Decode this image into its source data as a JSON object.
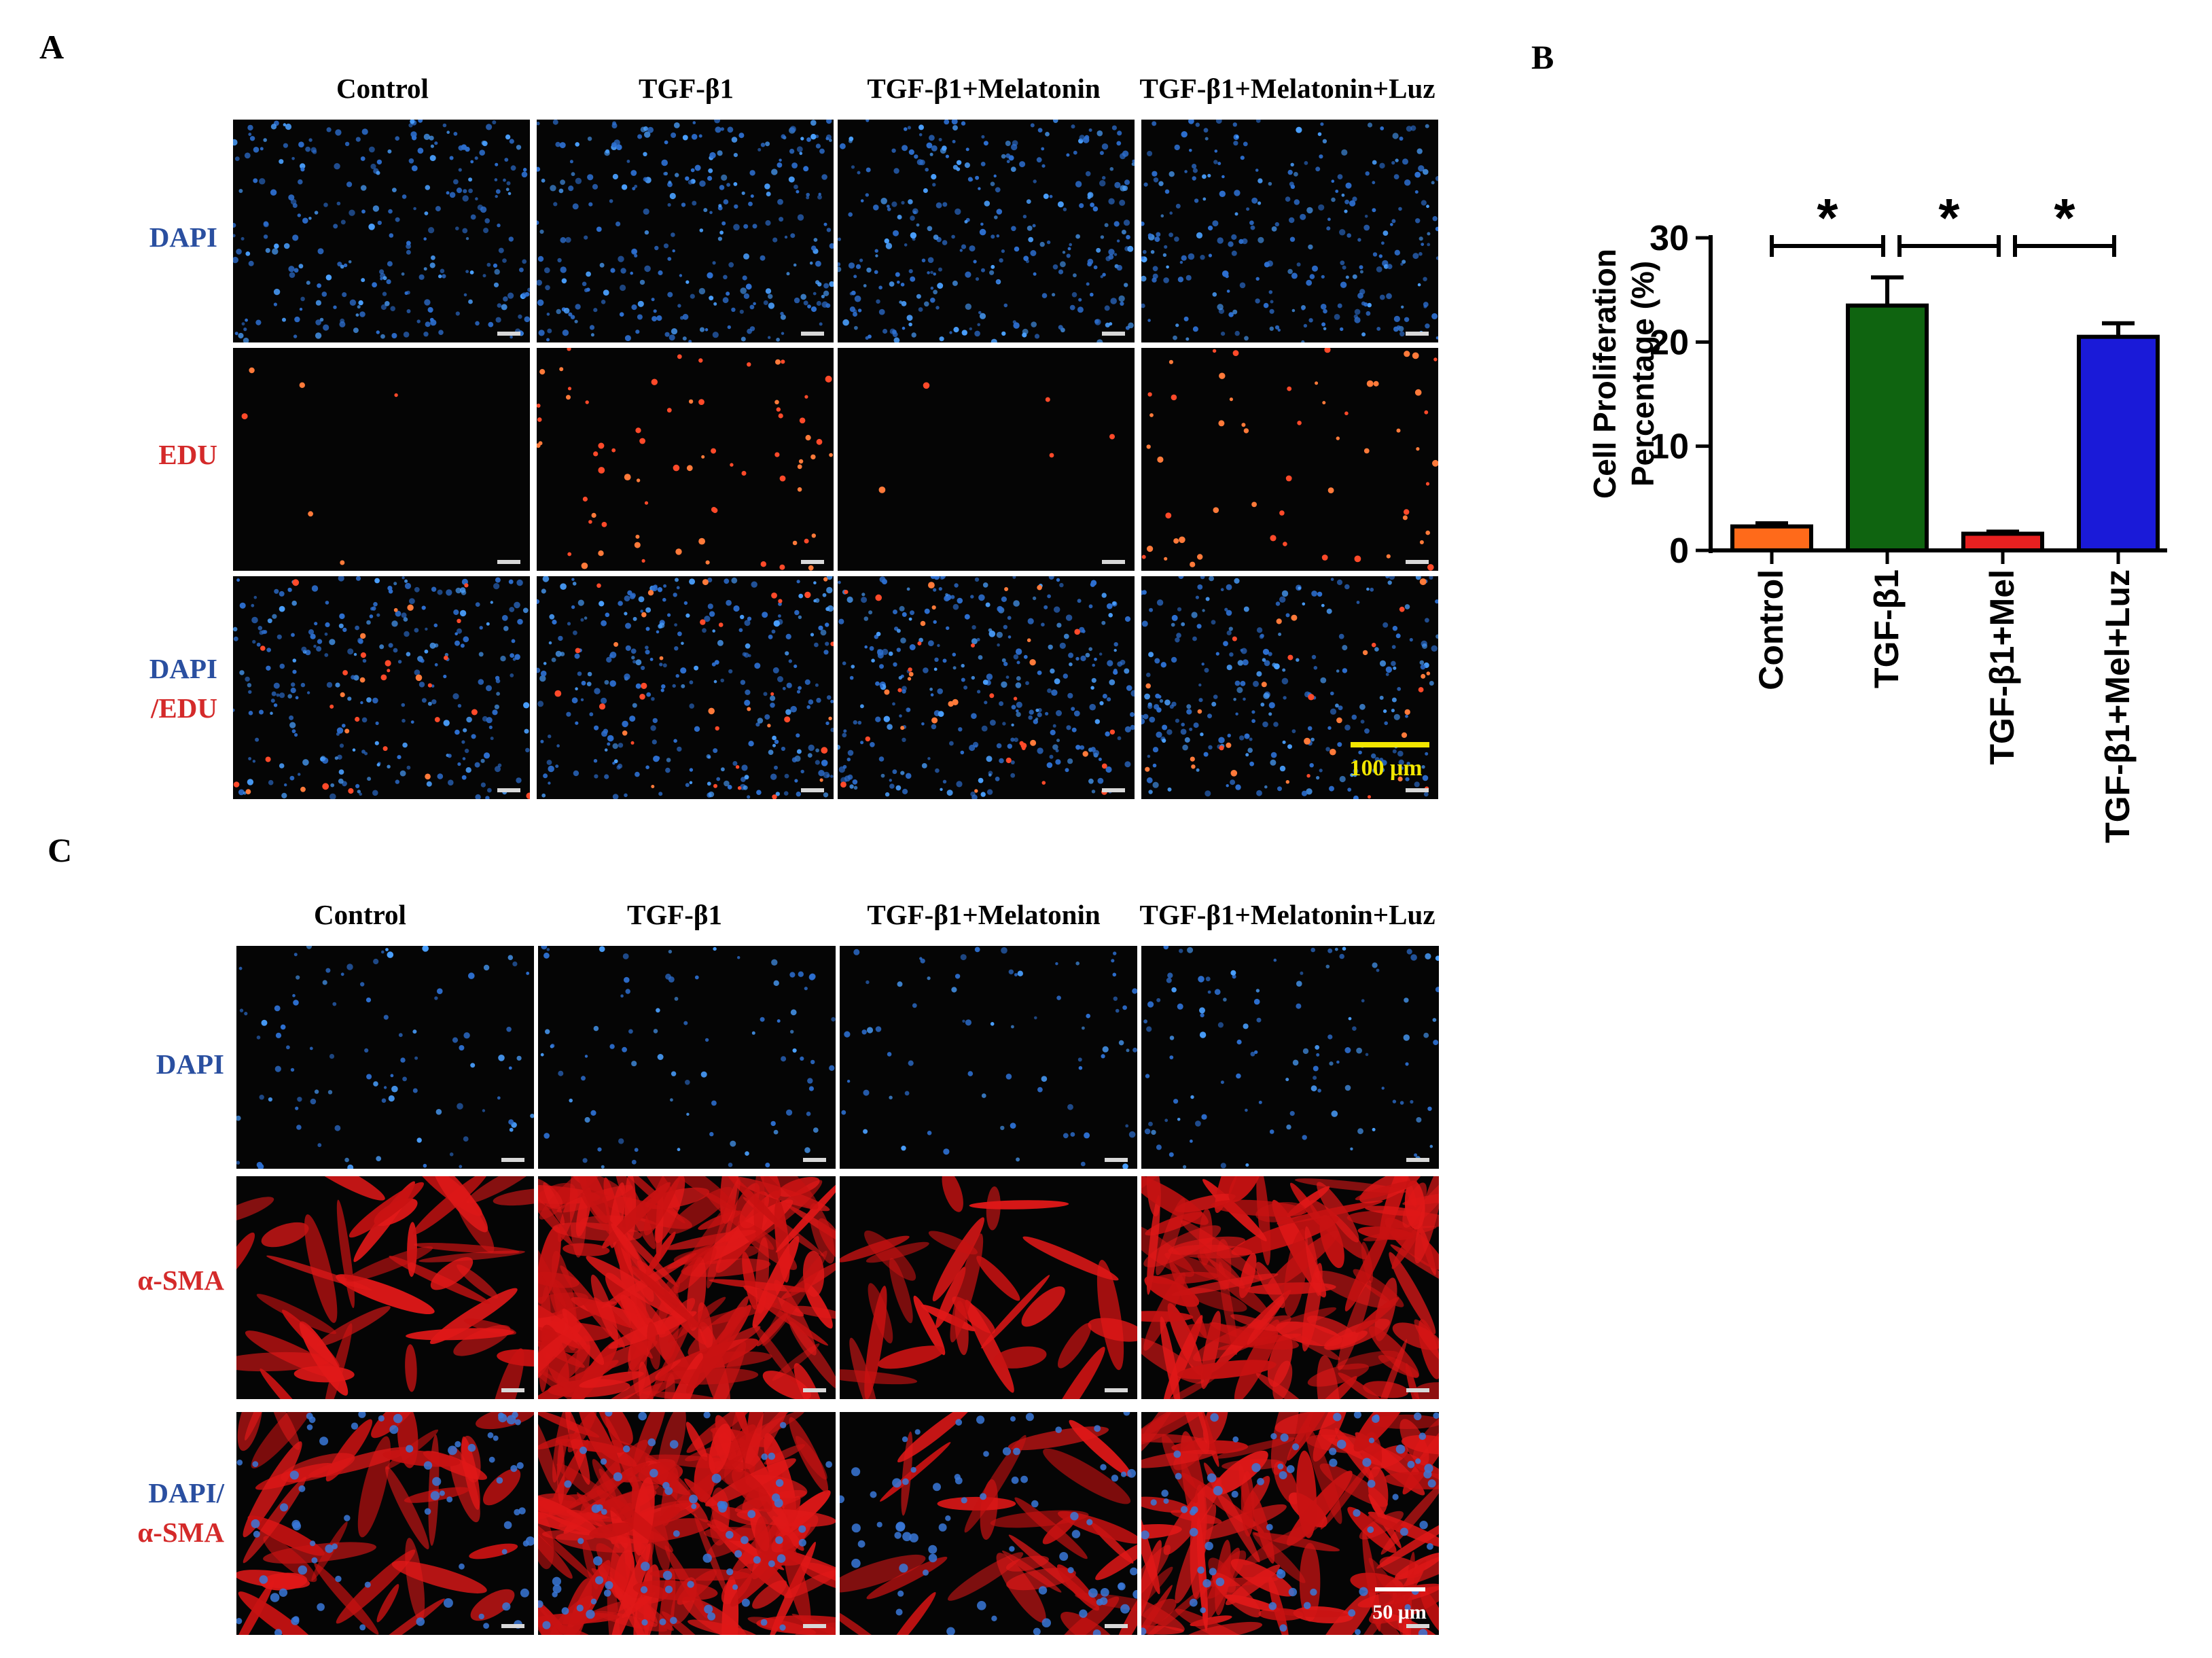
{
  "panels": {
    "A": {
      "letter": "A",
      "columns": [
        "Control",
        "TGF-β1",
        "TGF-β1+Melatonin",
        "TGF-β1+Melatonin+Luz"
      ],
      "rows": [
        {
          "parts": [
            {
              "text": "DAPI",
              "color": "blue"
            }
          ]
        },
        {
          "parts": [
            {
              "text": "EDU",
              "color": "red"
            }
          ]
        },
        {
          "parts": [
            {
              "text": "DAPI",
              "color": "blue"
            },
            {
              "text": "/",
              "color": "red"
            },
            {
              "text": "EDU",
              "color": "red"
            }
          ]
        }
      ],
      "scale_bar": "100 μm"
    },
    "B": {
      "letter": "B"
    },
    "C": {
      "letter": "C",
      "columns": [
        "Control",
        "TGF-β1",
        "TGF-β1+Melatonin",
        "TGF-β1+Melatonin+Luz"
      ],
      "rows": [
        {
          "parts": [
            {
              "text": "DAPI",
              "color": "blue"
            }
          ]
        },
        {
          "parts": [
            {
              "text": "α-SMA",
              "color": "red"
            }
          ]
        },
        {
          "parts": [
            {
              "text": "DAPI/",
              "color": "blue"
            },
            {
              "text": "α-SMA",
              "color": "red"
            }
          ]
        }
      ],
      "scale_bar": "50 μm"
    }
  },
  "chart_data": {
    "type": "bar",
    "categories": [
      "Control",
      "TGF-β1",
      "TGF-β1+Mel",
      "TGF-β1+Mel+Luz"
    ],
    "values": [
      2.3,
      23.5,
      1.6,
      20.5
    ],
    "errors": [
      0.3,
      2.7,
      0.2,
      1.3
    ],
    "colors": [
      "#ff6a1a",
      "#0f6410",
      "#e82020",
      "#1a1ad8"
    ],
    "ylabel_lines": [
      "Cell Proliferation",
      "Percentage (%)"
    ],
    "yticks": [
      0,
      10,
      20,
      30
    ],
    "ylim": [
      0,
      30
    ],
    "significance": [
      {
        "from": 0,
        "to": 1,
        "label": "*"
      },
      {
        "from": 1,
        "to": 2,
        "label": "*"
      },
      {
        "from": 2,
        "to": 3,
        "label": "*"
      }
    ]
  }
}
